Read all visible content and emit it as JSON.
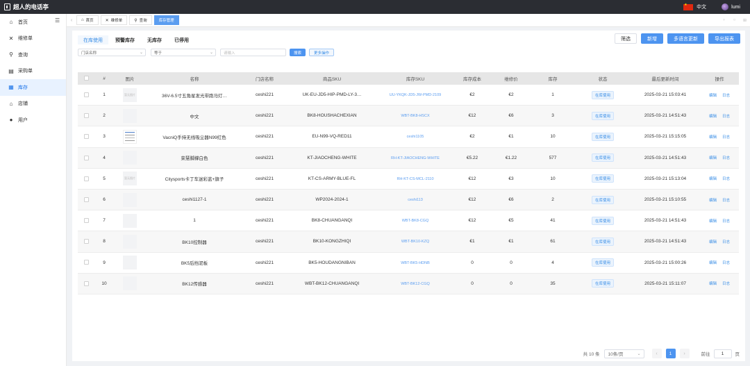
{
  "app": {
    "title": "超人的电话亭",
    "lang": "中文",
    "user": "lumi"
  },
  "sidebar": {
    "items": [
      {
        "label": "首页",
        "icon": "home-icon",
        "glyph": "⌂"
      },
      {
        "label": "维修单",
        "icon": "tools-icon",
        "glyph": "✕"
      },
      {
        "label": "查询",
        "icon": "search-icon",
        "glyph": "⚲"
      },
      {
        "label": "采购单",
        "icon": "book-icon",
        "glyph": "▤"
      },
      {
        "label": "库存",
        "icon": "inventory-icon",
        "glyph": "▦"
      },
      {
        "label": "店铺",
        "icon": "store-icon",
        "glyph": "⌂"
      },
      {
        "label": "用户",
        "icon": "user-icon",
        "glyph": "●"
      }
    ]
  },
  "view_tabs": [
    {
      "label": "首页",
      "glyph": "⌂"
    },
    {
      "label": "维修单",
      "glyph": "✕"
    },
    {
      "label": "查询",
      "glyph": "⚲"
    },
    {
      "label": "库存管理",
      "glyph": ""
    }
  ],
  "status_tabs": [
    "在库使用",
    "预警库存",
    "无库存",
    "已停用"
  ],
  "actions": {
    "filter": "筛选",
    "add": "新增",
    "multi_update": "多语言更新",
    "export": "导出报表"
  },
  "filters": {
    "field": "门店名称",
    "operator": "等于",
    "placeholder": "请输入",
    "search": "搜索",
    "more": "更多操作"
  },
  "table": {
    "headers": {
      "no": "#",
      "img": "图片",
      "name": "名称",
      "store": "门店名称",
      "sku": "商品SKU",
      "stock_sku": "库存SKU",
      "cost": "库存成本",
      "price": "维修价",
      "stock": "库存",
      "status": "状态",
      "time": "最后更新时间",
      "ops": "操作"
    },
    "edit_label": "编辑",
    "log_label": "日志",
    "rows": [
      {
        "no": "1",
        "img": "暂无图片",
        "name": "36V-6.5寸五角星发光带跑马灯…",
        "store": "ceshi221",
        "sku": "UK-EU-JD5-HIP-PMD-LY-3…",
        "stock_sku": "UU-YKQK-JD5-JW-PMD-2109",
        "cost": "€2",
        "price": "€2",
        "stock": "1",
        "status": "在库使用",
        "time": "2025-03-21 15:03:41"
      },
      {
        "no": "2",
        "img": "",
        "name": "中文",
        "store": "ceshi221",
        "sku": "BK8-HOUSHACHEXIAN",
        "stock_sku": "WBT-BK8-HSCX",
        "cost": "€12",
        "price": "€6",
        "stock": "3",
        "status": "在库使用",
        "time": "2025-03-21 14:51:43"
      },
      {
        "no": "3",
        "img": "pic",
        "name": "VacniQ手持无线吸尘器N99红色",
        "store": "ceshi221",
        "sku": "EU-N99-VQ-RED11",
        "stock_sku": "ceshi1105",
        "cost": "€2",
        "price": "€1",
        "stock": "10",
        "status": "在库使用",
        "time": "2025-03-21 15:15:05"
      },
      {
        "no": "4",
        "img": "",
        "name": "荣慧脚撑白色",
        "store": "ceshi221",
        "sku": "KT-JIAOCHENG-WHITE",
        "stock_sku": "RH-KT-JIAOCHENG-WHITE",
        "cost": "€5.22",
        "price": "€1.22",
        "stock": "577",
        "status": "在库使用",
        "time": "2025-03-21 14:51:43"
      },
      {
        "no": "5",
        "img": "暂无图片",
        "name": "Citysports卡丁车迷彩蓝+旗子",
        "store": "ceshi221",
        "sku": "KT-CS-ARMY-BLUE-FL",
        "stock_sku": "RH-KT-CS-MCL-2110",
        "cost": "€12",
        "price": "€3",
        "stock": "10",
        "status": "在库使用",
        "time": "2025-03-21 15:13:04"
      },
      {
        "no": "6",
        "img": "",
        "name": "ceshi1127-1",
        "store": "ceshi221",
        "sku": "WP2024-2024-1",
        "stock_sku": "ceshi113",
        "cost": "€12",
        "price": "€6",
        "stock": "2",
        "status": "在库使用",
        "time": "2025-03-21 15:10:55"
      },
      {
        "no": "7",
        "img": "",
        "name": "1",
        "store": "ceshi221",
        "sku": "BK8-CHUANGANQI",
        "stock_sku": "WBT-BK8-CGQ",
        "cost": "€12",
        "price": "€5",
        "stock": "41",
        "status": "在库使用",
        "time": "2025-03-21 14:51:43"
      },
      {
        "no": "8",
        "img": "",
        "name": "BK10控制器",
        "store": "ceshi221",
        "sku": "BK10-KONGZHIQI",
        "stock_sku": "WBT-BK10-KZQ",
        "cost": "€1",
        "price": "€1",
        "stock": "61",
        "status": "在库使用",
        "time": "2025-03-21 14:51:43"
      },
      {
        "no": "9",
        "img": "",
        "name": "BK5后挡泥板",
        "store": "ceshi221",
        "sku": "BK5-HOUDANGNIBAN",
        "stock_sku": "WBT-BK5-HDNB",
        "cost": "0",
        "price": "0",
        "stock": "4",
        "status": "在库使用",
        "time": "2025-03-21 15:00:26"
      },
      {
        "no": "10",
        "img": "",
        "name": "BK12传感器",
        "store": "ceshi221",
        "sku": "WBT-BK12-CHUANGANQI",
        "stock_sku": "WBT-BK12-CGQ",
        "cost": "0",
        "price": "0",
        "stock": "35",
        "status": "在库使用",
        "time": "2025-03-21 15:11:07"
      }
    ]
  },
  "pagination": {
    "total": "共 10 条",
    "page_size": "10条/页",
    "prev": "‹",
    "current": "1",
    "next": "›",
    "goto_label": "前往",
    "goto_value": "1",
    "page_suffix": "页"
  }
}
